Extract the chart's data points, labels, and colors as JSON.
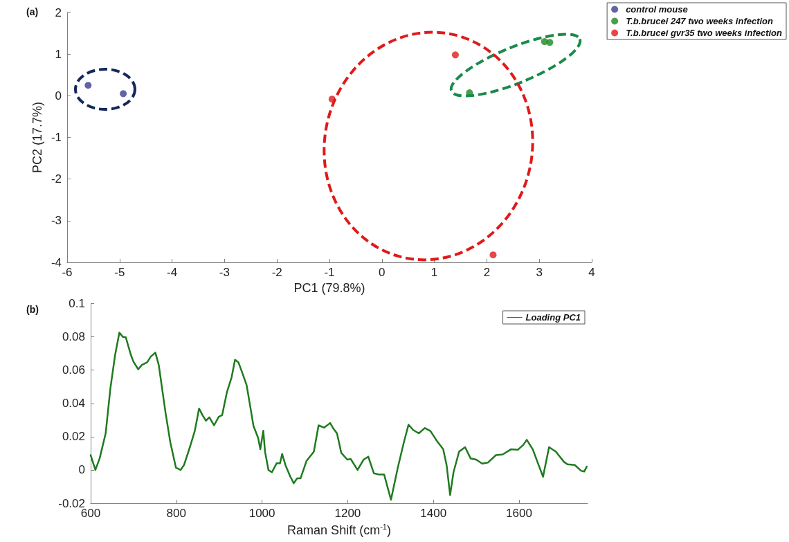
{
  "chart_data": [
    {
      "type": "scatter",
      "annotations": [
        "(a)"
      ],
      "xlabel": "PC1 (79.8%)",
      "ylabel": "PC2 (17.7%)",
      "xlim": [
        -6,
        4
      ],
      "xticks": [
        -6,
        -5,
        -4,
        -3,
        -2,
        -1,
        0,
        1,
        2,
        3,
        4
      ],
      "ylim": [
        -4,
        2
      ],
      "yticks": [
        -4,
        -3,
        -2,
        -1,
        0,
        1,
        2
      ],
      "legend": "top right",
      "marker": "circle",
      "series": [
        {
          "name": "control mouse",
          "color": "#3c3c91",
          "x": [
            -5.6,
            -4.93
          ],
          "values": [
            0.25,
            0.05
          ]
        },
        {
          "name": "T.b.brucei 247 two weeks infection",
          "color": "#1a8a1a",
          "x": [
            1.67,
            3.1,
            3.2
          ],
          "values": [
            0.07,
            1.3,
            1.28
          ]
        },
        {
          "name": "T.b.brucei gvr35 two weeks infection",
          "color": "#e01a1a",
          "x": [
            -0.95,
            1.4,
            2.12
          ],
          "values": [
            -0.08,
            0.98,
            -3.82
          ]
        }
      ]
    },
    {
      "type": "line",
      "annotations": [
        "(b)"
      ],
      "xlabel": "Raman Shift (cm$^{-1}$)",
      "xlim": [
        600,
        1760
      ],
      "xticks": [
        600,
        800,
        1000,
        1200,
        1400,
        1600
      ],
      "ylim": [
        -0.02,
        0.1
      ],
      "yticks": [
        -0.02,
        0,
        0.02,
        0.04,
        0.06,
        0.08,
        0.1
      ],
      "legend": "top right",
      "line_style": "solid",
      "series": [
        {
          "name": "Loading PC1",
          "color": "#1f7a1f",
          "x": [
            600,
            611,
            621,
            635,
            646,
            657,
            667,
            675,
            682,
            694,
            700,
            711,
            719,
            732,
            740,
            751,
            759,
            775,
            786,
            799,
            810,
            818,
            832,
            843,
            853,
            861,
            869,
            877,
            888,
            899,
            907,
            918,
            929,
            937,
            945,
            953,
            964,
            972,
            980,
            991,
            996,
            1003,
            1007,
            1015,
            1023,
            1034,
            1042,
            1047,
            1055,
            1066,
            1074,
            1082,
            1090,
            1104,
            1121,
            1132,
            1145,
            1159,
            1167,
            1175,
            1185,
            1199,
            1207,
            1223,
            1237,
            1248,
            1261,
            1272,
            1285,
            1301,
            1317,
            1331,
            1342,
            1353,
            1366,
            1380,
            1393,
            1407,
            1423,
            1431,
            1439,
            1447,
            1460,
            1474,
            1487,
            1500,
            1514,
            1527,
            1546,
            1562,
            1581,
            1597,
            1610,
            1618,
            1632,
            1646,
            1656,
            1670,
            1686,
            1705,
            1713,
            1730,
            1745,
            1752,
            1758
          ],
          "values": [
            0.0089,
            0.0,
            0.007,
            0.022,
            0.049,
            0.069,
            0.0825,
            0.08,
            0.0797,
            0.069,
            0.065,
            0.0605,
            0.063,
            0.0647,
            0.068,
            0.0705,
            0.063,
            0.034,
            0.0165,
            0.0014,
            0.0,
            0.003,
            0.014,
            0.0234,
            0.0369,
            0.033,
            0.0296,
            0.0316,
            0.0268,
            0.0319,
            0.033,
            0.0467,
            0.0557,
            0.0662,
            0.0646,
            0.0591,
            0.051,
            0.0389,
            0.0265,
            0.0192,
            0.0124,
            0.0236,
            0.011,
            0.0,
            -0.0014,
            0.004,
            0.004,
            0.0096,
            0.0027,
            -0.004,
            -0.008,
            -0.005,
            -0.005,
            0.0055,
            0.011,
            0.0268,
            0.0254,
            0.0282,
            0.0247,
            0.022,
            0.0103,
            0.0062,
            0.0066,
            0.0,
            0.0062,
            0.008,
            -0.002,
            -0.0027,
            -0.0027,
            -0.0179,
            0.0014,
            0.0165,
            0.0272,
            0.024,
            0.022,
            0.0252,
            0.0234,
            0.0179,
            0.0124,
            0.0027,
            -0.0151,
            -0.0014,
            0.011,
            0.0137,
            0.0069,
            0.0062,
            0.0038,
            0.0044,
            0.0089,
            0.0093,
            0.0124,
            0.0121,
            0.0151,
            0.0181,
            0.0124,
            0.0027,
            -0.0041,
            0.0137,
            0.011,
            0.0048,
            0.0034,
            0.003,
            -0.0005,
            -0.001,
            0.002
          ]
        }
      ]
    }
  ]
}
